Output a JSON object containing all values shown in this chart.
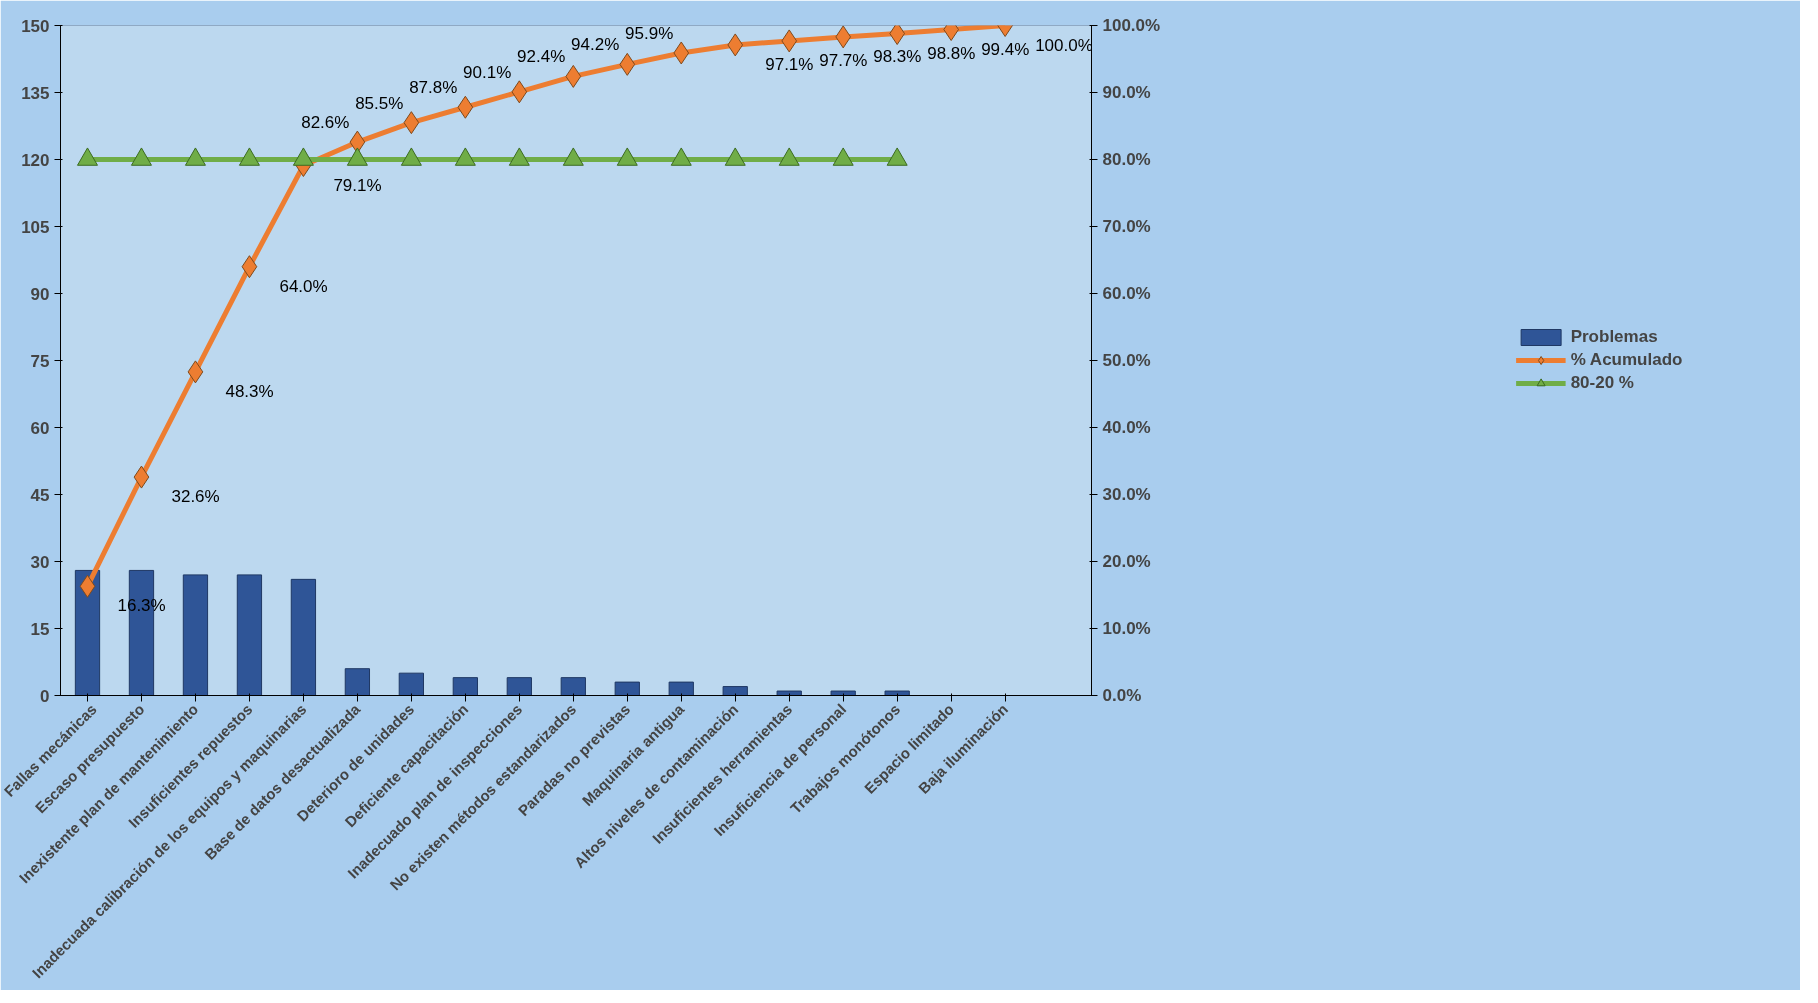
{
  "chart_data": {
    "type": "bar",
    "categories": [
      "Fallas mecánicas",
      "Escaso presupuesto",
      "Inexistente plan de mantenimiento",
      "Insuficientes repuestos",
      "Inadecuada calibración de los equipos y maquinarias",
      "Base de datos desactualizada",
      "Deterioro de unidades",
      "Deficiente capacitación",
      "Inadecuado plan de inspecciones",
      "No existen métodos estandarizados",
      "Paradas no previstas",
      "Maquinaria antigua",
      "Altos niveles de contaminación",
      "Insuficientes herramientas",
      "Insuficiencia de personal",
      "Trabajos monótonos",
      "Espacio limitado",
      "Baja iluminación"
    ],
    "series": [
      {
        "name": "Problemas",
        "color": "#2f5597",
        "values": [
          28,
          28,
          27,
          27,
          26,
          6,
          5,
          4,
          4,
          4,
          3,
          3,
          2,
          1,
          1,
          1,
          null,
          null
        ]
      },
      {
        "name": "% Acumulado",
        "type": "line",
        "axis": "y2",
        "color": "#ed7d31",
        "marker": "diamond",
        "values": [
          16.3,
          32.6,
          48.3,
          64.0,
          79.1,
          82.6,
          85.5,
          87.8,
          90.1,
          92.4,
          94.2,
          95.9,
          97.1,
          97.7,
          98.3,
          98.8,
          99.4,
          100.0
        ],
        "value_labels": [
          "16.3%",
          "32.6%",
          "48.3%",
          "64.0%",
          "79.1%",
          "82.6%",
          "85.5%",
          "87.8%",
          "90.1%",
          "92.4%",
          "94.2%",
          "95.9%",
          "97.1%",
          "97.7%",
          "98.3%",
          "98.8%",
          "99.4%",
          "100.0%"
        ]
      },
      {
        "name": "80-20 %",
        "type": "line",
        "axis": "y2",
        "color": "#70ad47",
        "marker": "triangle",
        "values": [
          80,
          80,
          80,
          80,
          80,
          80,
          80,
          80,
          80,
          80,
          80,
          80,
          80,
          80,
          80,
          80,
          null,
          null
        ]
      }
    ],
    "ylim": [
      0,
      150
    ],
    "yticks": [
      0,
      15,
      30,
      45,
      60,
      75,
      90,
      105,
      120,
      135,
      150
    ],
    "y2lim": [
      0,
      100
    ],
    "y2ticks": [
      {
        "value": 0,
        "label": "0.0%"
      },
      {
        "value": 10,
        "label": "10.0%"
      },
      {
        "value": 20,
        "label": "20.0%"
      },
      {
        "value": 30,
        "label": "30.0%"
      },
      {
        "value": 40,
        "label": "40.0%"
      },
      {
        "value": 50,
        "label": "50.0%"
      },
      {
        "value": 60,
        "label": "60.0%"
      },
      {
        "value": 70,
        "label": "70.0%"
      },
      {
        "value": 80,
        "label": "80.0%"
      },
      {
        "value": 90,
        "label": "90.0%"
      },
      {
        "value": 100,
        "label": "100.0%"
      }
    ],
    "legend": "right",
    "grid": false
  }
}
